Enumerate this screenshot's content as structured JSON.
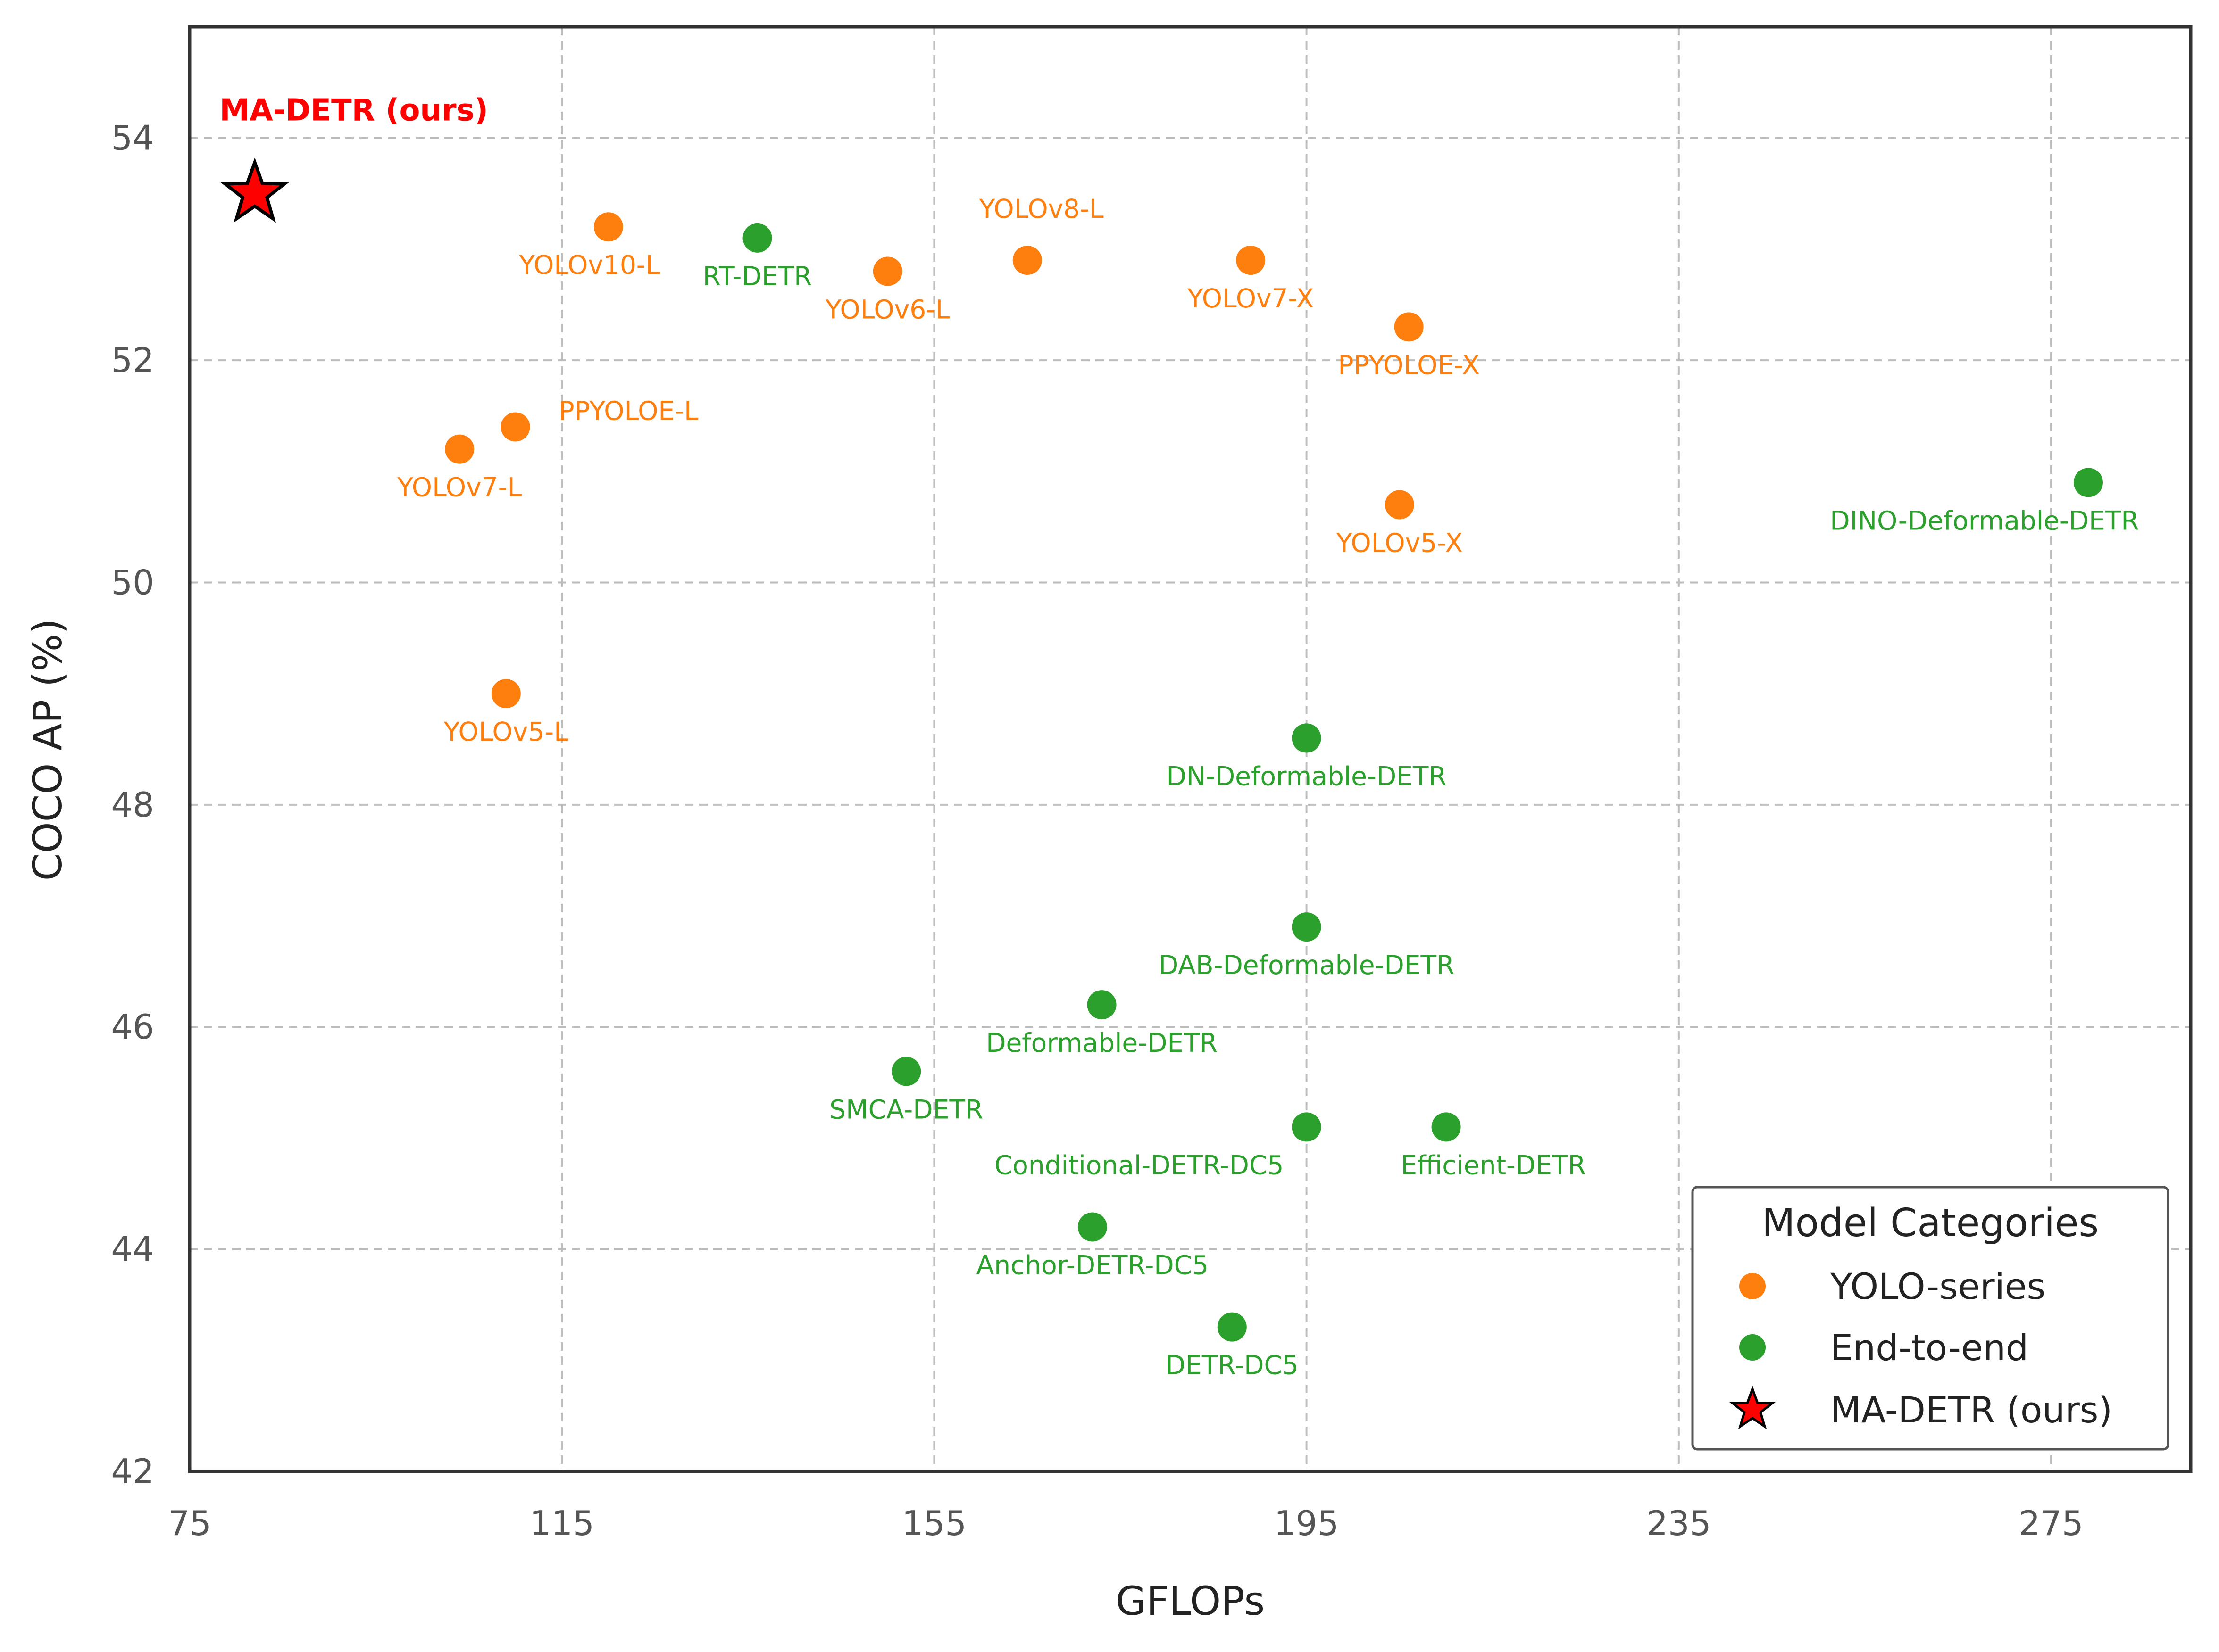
{
  "chart_data": {
    "type": "scatter",
    "xlabel": "GFLOPs",
    "ylabel": "COCO AP (%)",
    "xlim": [
      75,
      290
    ],
    "ylim": [
      42,
      55
    ],
    "xticks": [
      75,
      115,
      155,
      195,
      235,
      275
    ],
    "yticks": [
      42,
      44,
      46,
      48,
      50,
      52,
      54
    ],
    "grid": true,
    "legend": {
      "title": "Model Categories",
      "placement": "lower-right",
      "entries": [
        "YOLO-series",
        "End-to-end",
        "MA-DETR (ours)"
      ]
    },
    "colors": {
      "yolo": "#ff7f0e",
      "e2e": "#2ca02c",
      "ours": "#ff0000"
    },
    "series": [
      {
        "name": "YOLO-series",
        "marker": "circle",
        "points": [
          {
            "label": "YOLOv10-L",
            "x": 120,
            "y": 53.2
          },
          {
            "label": "YOLOv6-L",
            "x": 150,
            "y": 52.8
          },
          {
            "label": "YOLOv8-L",
            "x": 165,
            "y": 52.9
          },
          {
            "label": "YOLOv7-X",
            "x": 189,
            "y": 52.9
          },
          {
            "label": "PPYOLOE-X",
            "x": 206,
            "y": 52.3
          },
          {
            "label": "PPYOLOE-L",
            "x": 110,
            "y": 51.4
          },
          {
            "label": "YOLOv7-L",
            "x": 104,
            "y": 51.2
          },
          {
            "label": "YOLOv5-X",
            "x": 205,
            "y": 50.7
          },
          {
            "label": "YOLOv5-L",
            "x": 109,
            "y": 49.0
          }
        ]
      },
      {
        "name": "End-to-end",
        "marker": "circle",
        "points": [
          {
            "label": "RT-DETR",
            "x": 136,
            "y": 53.1
          },
          {
            "label": "DINO-Deformable-DETR",
            "x": 279,
            "y": 50.9
          },
          {
            "label": "DN-Deformable-DETR",
            "x": 195,
            "y": 48.6
          },
          {
            "label": "DAB-Deformable-DETR",
            "x": 195,
            "y": 46.9
          },
          {
            "label": "Deformable-DETR",
            "x": 173,
            "y": 46.2
          },
          {
            "label": "SMCA-DETR",
            "x": 152,
            "y": 45.6
          },
          {
            "label": "Conditional-DETR-DC5",
            "x": 195,
            "y": 45.1
          },
          {
            "label": "Efficient-DETR",
            "x": 210,
            "y": 45.1
          },
          {
            "label": "Anchor-DETR-DC5",
            "x": 172,
            "y": 44.2
          },
          {
            "label": "DETR-DC5",
            "x": 187,
            "y": 43.3
          }
        ]
      },
      {
        "name": "MA-DETR (ours)",
        "marker": "star",
        "points": [
          {
            "label": "MA-DETR (ours)",
            "x": 82,
            "y": 53.5
          }
        ]
      }
    ]
  }
}
